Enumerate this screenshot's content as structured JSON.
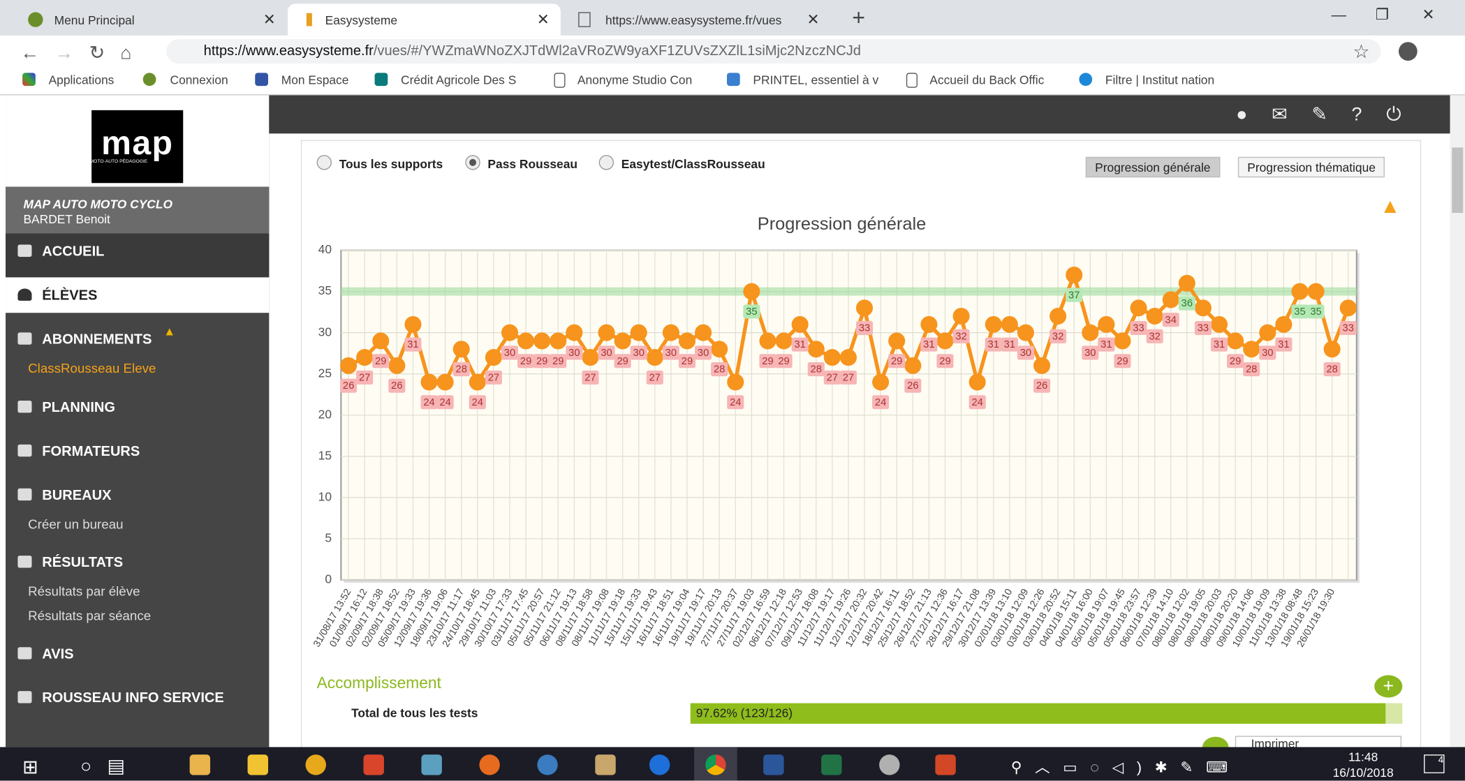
{
  "browser": {
    "tabs": [
      "Menu Principal",
      "Easysysteme",
      "https://www.easysysteme.fr/vues"
    ],
    "url_host": "https://www.easysysteme.fr",
    "url_path": "/vues/#/YWZmaWNoZXJTdWl2aVRoZW9yaXF1ZUVsZXZlL1siMjc2NzczNCJd",
    "bookmarks": [
      "Applications",
      "Connexion",
      "Mon Espace",
      "Crédit Agricole Des S",
      "Anonyme Studio Con",
      "PRINTEL, essentiel à v",
      "Accueil du Back Offic",
      "Filtre | Institut nation"
    ]
  },
  "sidebar": {
    "logo": "map",
    "logo_sub": "MOTO·AUTO PÉDAGOGIE",
    "school": "MAP AUTO MOTO CYCLO",
    "user": "BARDET Benoit",
    "menu": [
      "ACCUEIL",
      "ÉLÈVES",
      "ABONNEMENTS",
      "ClassRousseau Eleve",
      "PLANNING",
      "FORMATEURS",
      "BUREAUX",
      "Créer un bureau",
      "RÉSULTATS",
      "Résultats par élève",
      "Résultats par séance",
      "AVIS",
      "ROUSSEAU INFO SERVICE"
    ]
  },
  "main": {
    "radios": [
      "Tous les supports",
      "Pass Rousseau",
      "Easytest/ClassRousseau"
    ],
    "buttons": [
      "Progression générale",
      "Progression thématique"
    ],
    "section": "Accomplissement",
    "progress_label": "Total de tous les tests",
    "progress_text": "97.62% (123/126)",
    "progress": 97.62,
    "print": "Imprimer"
  },
  "taskbar": {
    "time": "11:48",
    "date": "16/10/2018",
    "notifications": "4"
  },
  "chart_data": {
    "type": "line",
    "title": "Progression générale",
    "categories": [
      "31/08/17 13:52",
      "01/09/17 16:12",
      "02/09/17 18:38",
      "02/09/17 18:52",
      "05/09/17 19:33",
      "12/09/17 19:36",
      "18/09/17 19:06",
      "23/10/17 11:17",
      "24/10/17 18:45",
      "29/10/17 11:03",
      "30/10/17 17:33",
      "03/11/17 17:45",
      "05/11/17 20:57",
      "05/11/17 21:12",
      "06/11/17 19:13",
      "08/11/17 18:58",
      "08/11/17 19:08",
      "11/11/17 19:18",
      "15/11/17 19:33",
      "15/11/17 19:43",
      "16/11/17 18:51",
      "16/11/17 19:04",
      "19/11/17 19:17",
      "19/11/17 20:13",
      "27/11/17 20:37",
      "27/11/17 19:03",
      "02/12/17 16:59",
      "06/12/17 12:18",
      "07/12/17 12:53",
      "09/12/17 18:08",
      "11/12/17 19:17",
      "11/12/17 19:26",
      "12/12/17 20:32",
      "12/12/17 20:42",
      "18/12/17 16:11",
      "25/12/17 18:52",
      "26/12/17 21:13",
      "27/12/17 12:36",
      "28/12/17 16:17",
      "29/12/17 21:08",
      "30/12/17 13:39",
      "02/01/18 13:10",
      "03/01/18 12:09",
      "03/01/18 12:26",
      "03/01/18 20:52",
      "04/01/18 15:11",
      "04/01/18 16:00",
      "05/01/18 19:07",
      "05/01/18 19:45",
      "05/01/18 23:57",
      "06/01/18 12:39",
      "07/01/18 14:10",
      "08/01/18 12:02",
      "08/01/18 19:05",
      "08/01/18 20:03",
      "08/01/18 20:20",
      "09/01/18 14:06",
      "10/01/18 19:09",
      "11/01/18 13:38",
      "13/01/18 08:48",
      "19/01/18 15:23",
      "26/01/18 19:30",
      null
    ],
    "values": [
      26,
      27,
      29,
      26,
      31,
      24,
      24,
      28,
      24,
      27,
      30,
      29,
      29,
      29,
      30,
      27,
      30,
      29,
      30,
      27,
      30,
      29,
      30,
      28,
      24,
      35,
      29,
      29,
      31,
      28,
      27,
      27,
      33,
      24,
      29,
      26,
      31,
      29,
      32,
      24,
      31,
      31,
      30,
      26,
      32,
      37,
      30,
      31,
      29,
      33,
      32,
      34,
      36,
      33,
      31,
      29,
      28,
      30,
      31,
      35,
      35,
      28,
      33
    ],
    "color": "#f7941d",
    "threshold": 35,
    "threshold_color": "#9fdc9f",
    "below_label_color": "#f7b5b5",
    "above_label_color": "#b6e8b6",
    "ylim": [
      0,
      40
    ],
    "yticks": [
      0,
      5,
      10,
      15,
      20,
      25,
      30,
      35,
      40
    ],
    "grid": true
  }
}
